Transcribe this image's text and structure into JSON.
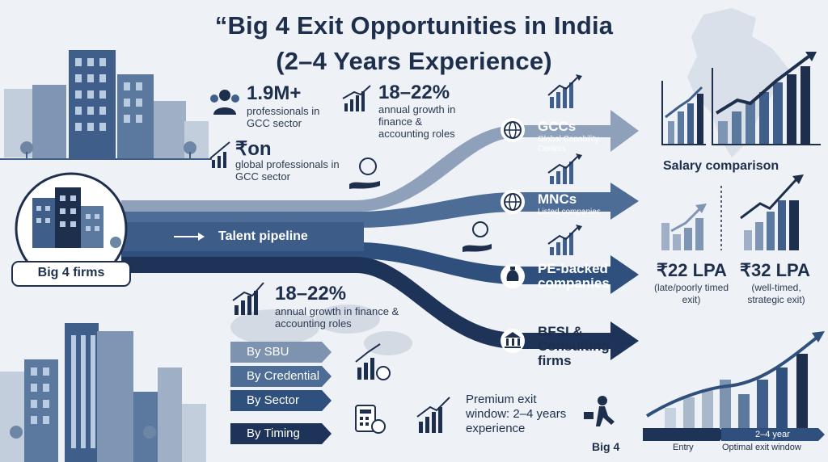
{
  "title": {
    "line1": "“Big 4 Exit Opportunities in India",
    "line2": "(2–4 Years Experience)"
  },
  "stats": {
    "gcc_pros": {
      "value": "1.9M+",
      "text": "professionals in GCC sector"
    },
    "global_pros": {
      "value": "₹on",
      "text": "global professionals in GCC sector"
    },
    "growth_top": {
      "value": "18–22%",
      "text": "annual growth in finance & accounting roles"
    },
    "growth_mid": {
      "value": "18–22%",
      "text": "annual growth in finance & accounting roles"
    }
  },
  "source": {
    "label": "Big 4 firms"
  },
  "pipeline": {
    "label": "Talent pipeline"
  },
  "destinations": [
    {
      "title": "GCCs",
      "subtitle": "Global Capability Centers",
      "icon": "globe-icon"
    },
    {
      "title": "MNCs",
      "subtitle": "Listed companies",
      "icon": "globe-icon"
    },
    {
      "title": "PE-backed companies",
      "subtitle": "",
      "icon": "money-bag-icon"
    },
    {
      "title": "BFSI & Consulting firms",
      "subtitle": "",
      "icon": "bank-icon"
    }
  ],
  "filters": [
    "By SBU",
    "By Credential",
    "By Sector",
    "By Timing"
  ],
  "salary": {
    "heading": "Salary comparison",
    "late": {
      "value": "₹22 LPA",
      "note": "(late/poorly timed exit)"
    },
    "well": {
      "value": "₹32 LPA",
      "note": "(well-timed, strategic exit)"
    }
  },
  "exit_window": {
    "text": "Premium exit window: 2–4 years experience"
  },
  "timeline": {
    "start": "Big 4",
    "entry": "Entry",
    "range": "2–4 year",
    "optimal": "Optimal exit window"
  },
  "colors": {
    "navy": "#1e2f4d",
    "blue": "#3f5f8a",
    "steel": "#7d93b0",
    "light": "#aab8cb",
    "background": "#eef1f5"
  }
}
